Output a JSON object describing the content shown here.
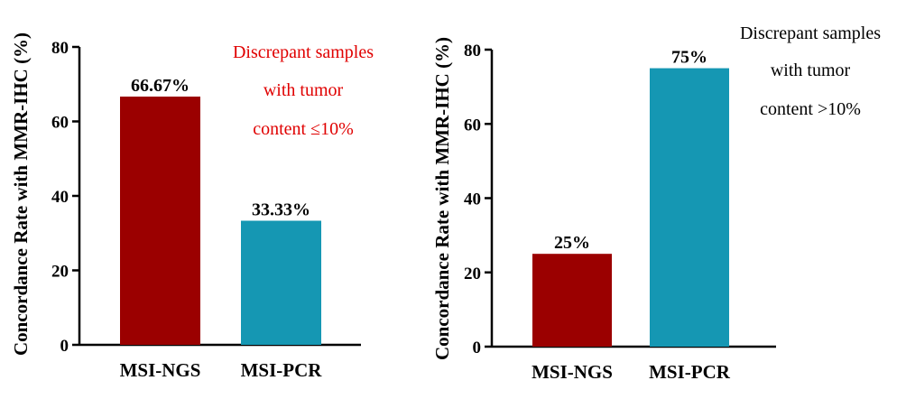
{
  "colors": {
    "ngs": "#9b0000",
    "pcr": "#1597b3",
    "annot_left": "#e00000",
    "annot_right": "#000000"
  },
  "chart_data": [
    {
      "type": "bar",
      "categories": [
        "MSI-NGS",
        "MSI-PCR"
      ],
      "values": [
        66.67,
        33.33
      ],
      "data_labels": [
        "66.67%",
        "33.33%"
      ],
      "ylabel": "Concordance Rate with MMR-IHC (%)",
      "ylim": [
        0,
        80
      ],
      "yticks": [
        "0",
        "20",
        "40",
        "60",
        "80"
      ],
      "annotation": [
        "Discrepant samples",
        "with tumor",
        "content ≤10%"
      ],
      "grid": false
    },
    {
      "type": "bar",
      "categories": [
        "MSI-NGS",
        "MSI-PCR"
      ],
      "values": [
        25,
        75
      ],
      "data_labels": [
        "25%",
        "75%"
      ],
      "ylabel": "Concordance Rate with MMR-IHC (%)",
      "ylim": [
        0,
        80
      ],
      "yticks": [
        "0",
        "20",
        "40",
        "60",
        "80"
      ],
      "annotation": [
        "Discrepant samples",
        "with tumor",
        "content >10%"
      ],
      "grid": false
    }
  ]
}
